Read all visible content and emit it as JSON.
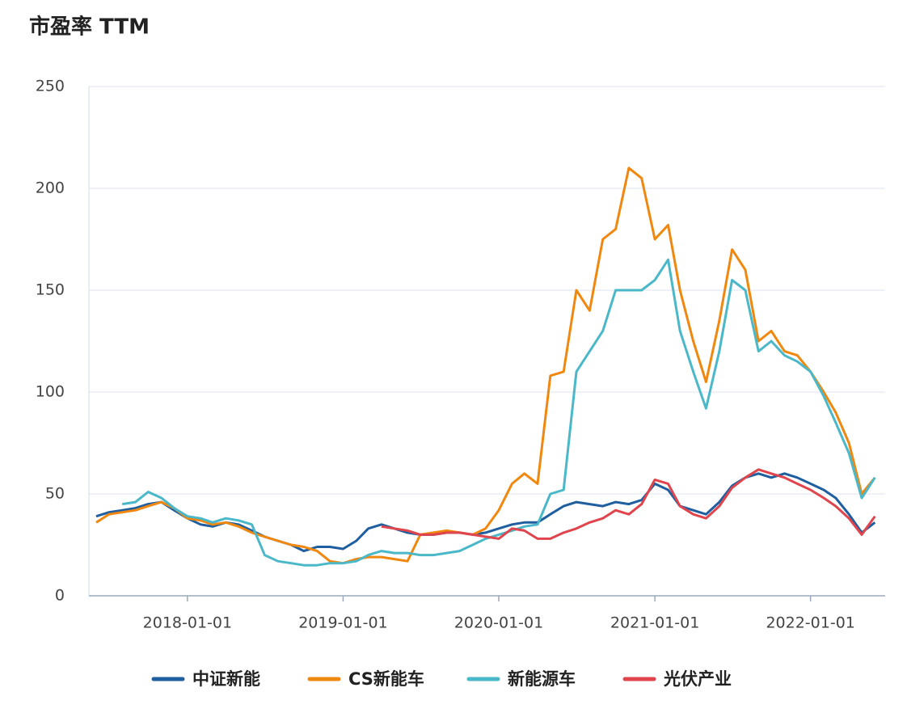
{
  "chart_data": {
    "type": "line",
    "title": "市盈率 TTM",
    "x": [
      "2017-06-01",
      "2017-07-01",
      "2017-08-01",
      "2017-09-01",
      "2017-10-01",
      "2017-11-01",
      "2017-12-01",
      "2018-01-01",
      "2018-02-01",
      "2018-03-01",
      "2018-04-01",
      "2018-05-01",
      "2018-06-01",
      "2018-07-01",
      "2018-08-01",
      "2018-09-01",
      "2018-10-01",
      "2018-11-01",
      "2018-12-01",
      "2019-01-01",
      "2019-02-01",
      "2019-03-01",
      "2019-04-01",
      "2019-05-01",
      "2019-06-01",
      "2019-07-01",
      "2019-08-01",
      "2019-09-01",
      "2019-10-01",
      "2019-11-01",
      "2019-12-01",
      "2020-01-01",
      "2020-02-01",
      "2020-03-01",
      "2020-04-01",
      "2020-05-01",
      "2020-06-01",
      "2020-07-01",
      "2020-08-01",
      "2020-09-01",
      "2020-10-01",
      "2020-11-01",
      "2020-12-01",
      "2021-01-01",
      "2021-02-01",
      "2021-03-01",
      "2021-04-01",
      "2021-05-01",
      "2021-06-01",
      "2021-07-01",
      "2021-08-01",
      "2021-09-01",
      "2021-10-01",
      "2021-11-01",
      "2021-12-01",
      "2022-01-01",
      "2022-02-01",
      "2022-03-01",
      "2022-04-01",
      "2022-05-01",
      "2022-06-01"
    ],
    "series": [
      {
        "name": "中证新能",
        "color": "#1f5f9f",
        "values": [
          39,
          41,
          42,
          43,
          45,
          46,
          42,
          38,
          35,
          34,
          36,
          35,
          32,
          29,
          27,
          25,
          22,
          24,
          24,
          23,
          27,
          33,
          35,
          33,
          31,
          30,
          30,
          31,
          31,
          30,
          31,
          33,
          35,
          36,
          36,
          40,
          44,
          46,
          45,
          44,
          46,
          45,
          47,
          55,
          52,
          44,
          42,
          40,
          46,
          54,
          58,
          60,
          58,
          60,
          58,
          55,
          52,
          48,
          40,
          31,
          36
        ]
      },
      {
        "name": "CS新能车",
        "color": "#f0880f",
        "values": [
          36,
          40,
          41,
          42,
          44,
          46,
          43,
          38,
          37,
          35,
          36,
          34,
          31,
          29,
          27,
          25,
          24,
          22,
          17,
          16,
          18,
          19,
          19,
          18,
          17,
          30,
          31,
          32,
          31,
          30,
          33,
          42,
          55,
          60,
          55,
          108,
          110,
          150,
          140,
          175,
          180,
          210,
          205,
          175,
          182,
          150,
          125,
          105,
          135,
          170,
          160,
          125,
          130,
          120,
          118,
          110,
          100,
          90,
          75,
          50,
          58
        ]
      },
      {
        "name": "新能源车",
        "color": "#4ab8c8",
        "values": [
          null,
          null,
          45,
          46,
          51,
          48,
          43,
          39,
          38,
          36,
          38,
          37,
          35,
          20,
          17,
          16,
          15,
          15,
          16,
          16,
          17,
          20,
          22,
          21,
          21,
          20,
          20,
          21,
          22,
          25,
          28,
          30,
          32,
          34,
          35,
          50,
          52,
          110,
          120,
          130,
          150,
          150,
          150,
          155,
          165,
          130,
          110,
          92,
          120,
          155,
          150,
          120,
          125,
          118,
          115,
          110,
          98,
          85,
          70,
          48,
          58
        ]
      },
      {
        "name": "光伏产业",
        "color": "#e0454d",
        "values": [
          null,
          null,
          null,
          null,
          null,
          null,
          null,
          null,
          null,
          null,
          null,
          null,
          null,
          null,
          null,
          null,
          null,
          null,
          null,
          null,
          null,
          null,
          34,
          33,
          32,
          30,
          30,
          31,
          31,
          30,
          29,
          28,
          33,
          32,
          28,
          28,
          31,
          33,
          36,
          38,
          42,
          40,
          45,
          57,
          55,
          44,
          40,
          38,
          44,
          53,
          58,
          62,
          60,
          58,
          55,
          52,
          48,
          44,
          38,
          30,
          39
        ]
      }
    ],
    "xlim": [
      "2017-05-15",
      "2022-06-25"
    ],
    "xticks": [
      "2018-01-01",
      "2019-01-01",
      "2020-01-01",
      "2021-01-01",
      "2022-01-01"
    ],
    "ylim": [
      0,
      250
    ],
    "yticks": [
      0,
      50,
      100,
      150,
      200,
      250
    ],
    "grid": true
  }
}
